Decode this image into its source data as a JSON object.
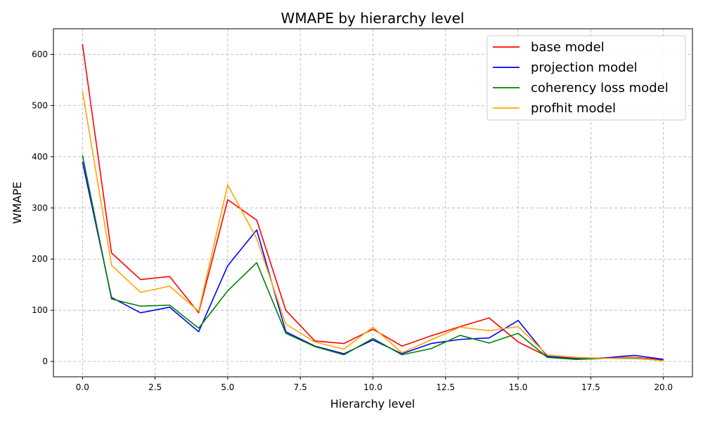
{
  "chart_data": {
    "type": "line",
    "title": "WMAPE by hierarchy level",
    "xlabel": "Hierarchy level",
    "ylabel": "WMAPE",
    "xlim": [
      -1,
      21
    ],
    "ylim": [
      -30,
      650
    ],
    "xticks": [
      0,
      2.5,
      5,
      7.5,
      10,
      12.5,
      15,
      17.5,
      20
    ],
    "xtick_labels": [
      "0.0",
      "2.5",
      "5.0",
      "7.5",
      "10.0",
      "12.5",
      "15.0",
      "17.5",
      "20.0"
    ],
    "yticks": [
      0,
      100,
      200,
      300,
      400,
      500,
      600
    ],
    "ytick_labels": [
      "0",
      "100",
      "200",
      "300",
      "400",
      "500",
      "600"
    ],
    "grid": true,
    "legend_position": "top-right",
    "x": [
      0,
      1,
      2,
      3,
      4,
      5,
      6,
      7,
      8,
      9,
      10,
      11,
      12,
      13,
      14,
      15,
      16,
      17,
      18,
      19,
      20
    ],
    "series": [
      {
        "name": "base model",
        "color": "#ff0000",
        "values": [
          620,
          212,
          160,
          166,
          95,
          316,
          276,
          100,
          40,
          35,
          63,
          30,
          50,
          68,
          85,
          38,
          10,
          6,
          7,
          8,
          3
        ]
      },
      {
        "name": "projection model",
        "color": "#0000ff",
        "values": [
          390,
          125,
          95,
          106,
          58,
          187,
          257,
          58,
          30,
          15,
          42,
          15,
          35,
          43,
          46,
          80,
          10,
          5,
          7,
          12,
          4
        ]
      },
      {
        "name": "coherency loss model",
        "color": "#008000",
        "values": [
          403,
          122,
          108,
          110,
          65,
          138,
          193,
          55,
          29,
          13,
          45,
          13,
          25,
          51,
          36,
          55,
          8,
          4,
          6,
          6,
          2
        ]
      },
      {
        "name": "profhit model",
        "color": "#ffa500",
        "values": [
          528,
          188,
          135,
          147,
          98,
          345,
          240,
          73,
          38,
          24,
          67,
          17,
          42,
          67,
          60,
          68,
          13,
          8,
          6,
          7,
          1
        ]
      }
    ]
  }
}
